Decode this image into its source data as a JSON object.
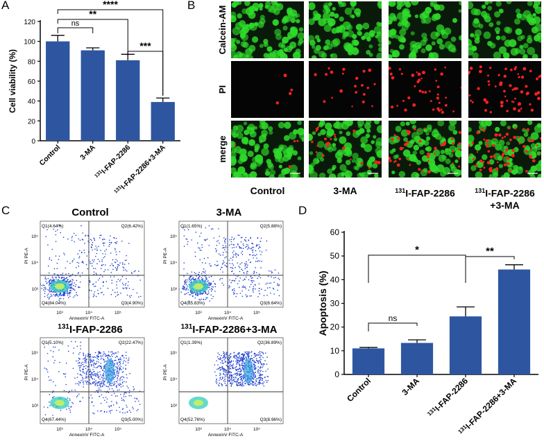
{
  "panel_letters": {
    "a": "A",
    "b": "B",
    "c": "C",
    "d": "D"
  },
  "chart_data": [
    {
      "id": "A",
      "type": "bar",
      "categories": [
        "Control",
        "3-MA",
        "¹³¹I-FAP-2286",
        "¹³¹I-FAP-2286+3-MA"
      ],
      "values": [
        100,
        91,
        81,
        39
      ],
      "errors": [
        6,
        2.5,
        6,
        4
      ],
      "ylabel": "Cell viability (%)",
      "xlabel": "",
      "ylim": [
        0,
        120
      ],
      "yticks": [
        0,
        20,
        40,
        60,
        80,
        100,
        120
      ],
      "grid": false,
      "bar_color": "#2e56a0",
      "significance": [
        {
          "pair": [
            0,
            1
          ],
          "label": "ns"
        },
        {
          "pair": [
            0,
            2
          ],
          "label": "**"
        },
        {
          "pair": [
            0,
            3
          ],
          "label": "****"
        },
        {
          "pair": [
            2,
            3
          ],
          "label": "***"
        }
      ]
    },
    {
      "id": "D",
      "type": "bar",
      "categories": [
        "Control",
        "3-MA",
        "¹³¹I-FAP-2286",
        "¹³¹I-FAP-2286+3-MA"
      ],
      "values": [
        11,
        13.3,
        24.5,
        44.3
      ],
      "errors": [
        0.4,
        1.3,
        4,
        2
      ],
      "ylabel": "Apoptosis (%)",
      "xlabel": "",
      "ylim": [
        0,
        60
      ],
      "yticks": [
        0,
        10,
        20,
        30,
        40,
        50,
        60
      ],
      "grid": false,
      "bar_color": "#2e56a0",
      "significance": [
        {
          "pair": [
            0,
            1
          ],
          "label": "ns"
        },
        {
          "pair": [
            0,
            2
          ],
          "label": "*"
        },
        {
          "pair": [
            2,
            3
          ],
          "label": "**"
        }
      ]
    }
  ],
  "microscopy": {
    "row_labels": [
      "Calcein-AM",
      "PI",
      "merge"
    ],
    "column_labels": [
      {
        "sup": "",
        "main": "Control",
        "line2": ""
      },
      {
        "sup": "",
        "main": "3-MA",
        "line2": ""
      },
      {
        "sup": "131",
        "main": "I-FAP-2286",
        "line2": ""
      },
      {
        "sup": "131",
        "main": "I-FAP-2286",
        "line2": "+3-MA"
      }
    ],
    "red_cell_levels": [
      0.05,
      0.3,
      0.6,
      0.9
    ],
    "green_color": "#2fdc2a",
    "red_color": "#ff2020"
  },
  "flow_cytometry": {
    "x_axis_label": "AnnexinV FITC-A",
    "y_axis_label": "PI PE-A",
    "ticks": [
      "10³",
      "10⁴",
      "10⁵"
    ],
    "plots": [
      {
        "title": "Control",
        "title_sup": "",
        "q1": "Q1(4.64%)",
        "q2": "Q2(6.42%)",
        "q3": "Q3(4.90%)",
        "q4": "Q4(84.04%)"
      },
      {
        "title": "3-MA",
        "title_sup": "",
        "q1": "Q1(1.65%)",
        "q2": "Q2(5.88%)",
        "q3": "Q3(6.64%)",
        "q4": "Q4(85.83%)"
      },
      {
        "title": "I-FAP-2286",
        "title_sup": "131",
        "q1": "Q1(5.10%)",
        "q2": "Q2(22.47%)",
        "q3": "Q3(5.00%)",
        "q4": "Q4(67.44%)"
      },
      {
        "title": "I-FAP-2286+3-MA",
        "title_sup": "131",
        "q1": "Q1(1.39%)",
        "q2": "Q2(36.89%)",
        "q3": "Q3(8.96%)",
        "q4": "Q4(52.76%)"
      }
    ]
  }
}
